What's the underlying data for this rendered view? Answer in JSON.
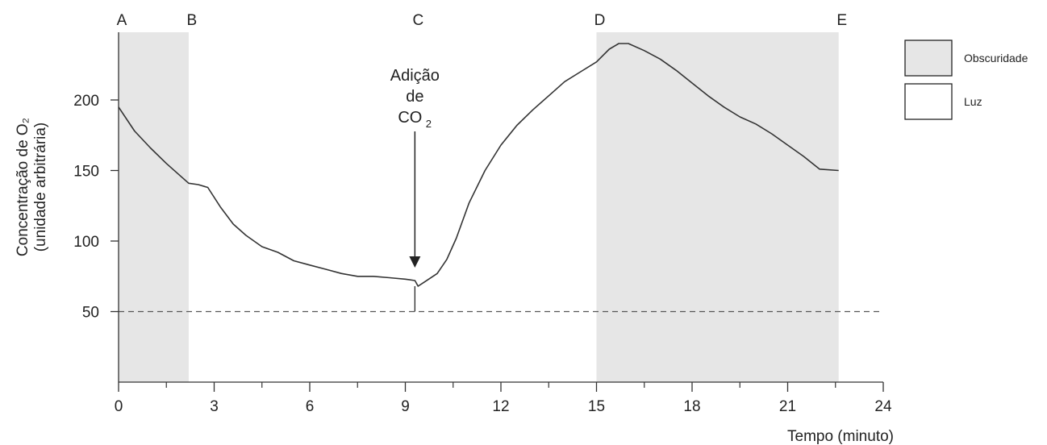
{
  "chart_data": {
    "type": "line",
    "title": "",
    "xlabel": "Tempo (minuto)",
    "ylabel_line1": "Concentração de O₂",
    "ylabel_line2": "(unidade arbitrária)",
    "xlim": [
      0,
      24
    ],
    "ylim": [
      0,
      250
    ],
    "x_ticks": [
      0,
      3,
      6,
      9,
      12,
      15,
      18,
      21,
      24
    ],
    "x_tick_labels": [
      "0",
      "3",
      "6",
      "9",
      "12",
      "15",
      "18",
      "21",
      "24"
    ],
    "x_minor_ticks": [
      1.5,
      4.5,
      7.5,
      10.5,
      13.5,
      16.5,
      19.5,
      22.5
    ],
    "y_ticks": [
      50,
      100,
      150,
      200
    ],
    "y_tick_labels": [
      "50",
      "100",
      "150",
      "200"
    ],
    "grid": false,
    "reference_line": {
      "y": 50,
      "style": "dashed"
    },
    "phases": [
      {
        "label": "A",
        "x": 0
      },
      {
        "label": "B",
        "x": 2.2
      },
      {
        "label": "C",
        "x": 9.3
      },
      {
        "label": "D",
        "x": 15
      },
      {
        "label": "E",
        "x": 22.6
      }
    ],
    "shaded_intervals": [
      {
        "from": 0,
        "to": 2.2,
        "fill": "#e6e6e6"
      },
      {
        "from": 15,
        "to": 22.6,
        "fill": "#e6e6e6"
      }
    ],
    "legend": [
      {
        "label": "Obscuridade",
        "fill": "#e6e6e6"
      },
      {
        "label": "Luz",
        "fill": "#ffffff"
      }
    ],
    "legend_position": "top-right",
    "annotation": {
      "line1": "Adição",
      "line2": "de",
      "line3_main": "CO",
      "line3_sub": "2",
      "x": 9.3,
      "arrow_to_y": 82
    },
    "series": [
      {
        "color": "#333333",
        "x": [
          0,
          0.5,
          1,
          1.5,
          2,
          2.2,
          2.5,
          2.8,
          3.2,
          3.6,
          4,
          4.5,
          5,
          5.5,
          6,
          6.5,
          7,
          7.5,
          8,
          8.5,
          9,
          9.3,
          9.4,
          9.6,
          10,
          10.3,
          10.6,
          11,
          11.5,
          12,
          12.5,
          13,
          13.5,
          14,
          14.5,
          15,
          15.4,
          15.7,
          16,
          16.5,
          17,
          17.5,
          18,
          18.5,
          19,
          19.5,
          20,
          20.5,
          21,
          21.5,
          22,
          22.6
        ],
        "y": [
          195,
          178,
          166,
          155,
          145,
          141,
          140,
          138,
          124,
          112,
          104,
          96,
          92,
          86,
          83,
          80,
          77,
          75,
          75,
          74,
          73,
          72,
          68,
          71,
          77,
          87,
          102,
          127,
          150,
          168,
          182,
          193,
          203,
          213,
          220,
          227,
          236,
          240,
          240,
          235,
          229,
          221,
          212,
          203,
          195,
          188,
          183,
          176,
          168,
          160,
          151,
          150
        ]
      }
    ]
  }
}
